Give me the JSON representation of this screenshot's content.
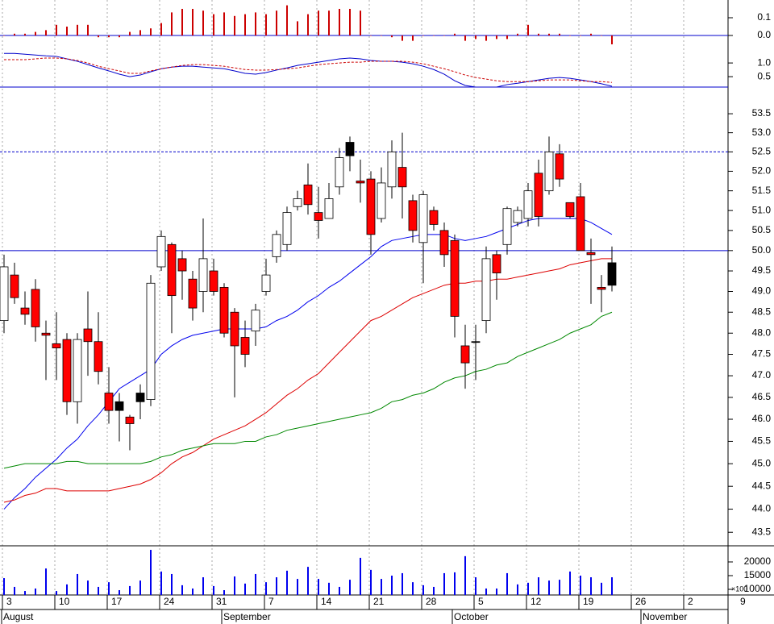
{
  "chart_data": [
    {
      "type": "bar",
      "color": "#cc0000",
      "ylim": [
        -0.05,
        0.2
      ],
      "yticks": [
        0.1,
        {
          "value": 0,
          "label": "0.0"
        }
      ],
      "baseline_color": "#0000cc",
      "values": [
        0.0,
        0.01,
        0.01,
        0.02,
        0.03,
        0.06,
        0.05,
        0.06,
        0.06,
        -0.01,
        -0.01,
        -0.01,
        0.02,
        0.03,
        0.04,
        0.07,
        0.13,
        0.15,
        0.15,
        0.14,
        0.12,
        0.13,
        0.11,
        0.12,
        0.13,
        0.12,
        0.14,
        0.17,
        0.08,
        0.12,
        0.14,
        0.14,
        0.15,
        0.15,
        0.14,
        0.0,
        0.0,
        -0.01,
        -0.03,
        -0.03,
        0.0,
        0.0,
        0.0,
        0.01,
        -0.03,
        -0.02,
        -0.03,
        -0.02,
        -0.02,
        0.01,
        0.06,
        0.01,
        0.01,
        0.01,
        0.0,
        0.0,
        0.01,
        0.0,
        -0.05
      ]
    },
    {
      "type": "line",
      "ylim": [
        0.12,
        1.68
      ],
      "yticks": [
        {
          "value": 1,
          "label": "1.0"
        },
        0.5
      ],
      "series": [
        {
          "color": "#0000cc",
          "dashed": false,
          "values": [
            1.35,
            1.35,
            1.32,
            1.29,
            1.26,
            1.24,
            1.15,
            1.06,
            0.94,
            0.82,
            0.71,
            0.59,
            0.5,
            0.56,
            0.68,
            0.79,
            0.85,
            0.88,
            0.88,
            0.85,
            0.82,
            0.79,
            0.71,
            0.62,
            0.59,
            0.65,
            0.74,
            0.82,
            0.91,
            0.97,
            1.03,
            1.09,
            1.15,
            1.18,
            1.15,
            1.09,
            1.06,
            1.06,
            1.03,
            0.97,
            0.88,
            0.76,
            0.59,
            0.35,
            0.18,
            0.12,
            0.12,
            0.12,
            0.21,
            0.26,
            0.32,
            0.38,
            0.44,
            0.47,
            0.44,
            0.38,
            0.32,
            0.24,
            0.15
          ]
        },
        {
          "color": "#cc0000",
          "dashed": true,
          "values": [
            1.12,
            1.12,
            1.12,
            1.15,
            1.18,
            1.18,
            1.15,
            1.09,
            1.0,
            0.88,
            0.79,
            0.71,
            0.62,
            0.62,
            0.71,
            0.79,
            0.85,
            0.91,
            0.94,
            0.94,
            0.91,
            0.88,
            0.82,
            0.76,
            0.74,
            0.74,
            0.76,
            0.79,
            0.82,
            0.88,
            0.94,
            0.97,
            1.0,
            1.03,
            1.03,
            1.06,
            1.06,
            1.06,
            1.06,
            1.03,
            0.97,
            0.88,
            0.79,
            0.68,
            0.56,
            0.47,
            0.41,
            0.35,
            0.32,
            0.32,
            0.32,
            0.35,
            0.38,
            0.38,
            0.38,
            0.35,
            0.32,
            0.32,
            0.29
          ]
        }
      ]
    },
    {
      "type": "candlestick",
      "log_scale": true,
      "ylim": [
        43.21,
        54.21
      ],
      "yticks": [
        43.5,
        {
          "value": 44,
          "label": "44.0"
        },
        44.5,
        {
          "value": 45,
          "label": "45.0"
        },
        45.5,
        {
          "value": 46,
          "label": "46.0"
        },
        46.5,
        {
          "value": 47,
          "label": "47.0"
        },
        47.5,
        {
          "value": 48,
          "label": "48.0"
        },
        48.5,
        {
          "value": 49,
          "label": "49.0"
        },
        49.5,
        {
          "value": 50,
          "label": "50.0"
        },
        50.5,
        {
          "value": 51,
          "label": "51.0"
        },
        51.5,
        {
          "value": 52,
          "label": "52.0"
        },
        52.5,
        {
          "value": 53,
          "label": "53.0"
        },
        53.5
      ],
      "open": [
        48.3,
        49.4,
        48.6,
        49.05,
        48.0,
        47.75,
        47.85,
        46.4,
        48.1,
        47.8,
        46.6,
        46.4,
        46.05,
        46.6,
        46.45,
        49.6,
        50.15,
        49.8,
        49.3,
        49.0,
        49.5,
        49.1,
        48.5,
        47.9,
        48.05,
        49.0,
        49.85,
        50.15,
        51.1,
        51.65,
        50.95,
        50.8,
        51.6,
        52.4,
        51.75,
        51.8,
        50.8,
        51.6,
        52.1,
        51.25,
        50.2,
        51.0,
        50.5,
        50.25,
        47.7,
        47.8,
        48.3,
        49.9,
        50.15,
        50.7,
        50.8,
        51.95,
        51.5,
        52.45,
        51.2,
        51.35,
        49.95,
        49.1,
        49.7
      ],
      "high": [
        49.9,
        49.7,
        49.0,
        49.3,
        48.3,
        48.5,
        48.0,
        48.0,
        49.0,
        48.5,
        47.2,
        46.6,
        46.1,
        46.8,
        49.4,
        50.5,
        50.2,
        50.0,
        49.5,
        50.8,
        49.8,
        49.2,
        48.6,
        48.3,
        48.7,
        49.8,
        50.5,
        51.1,
        51.5,
        52.2,
        51.6,
        51.7,
        52.6,
        52.9,
        52.3,
        52.0,
        52.1,
        52.8,
        53.0,
        51.4,
        51.5,
        51.1,
        50.7,
        50.4,
        48.2,
        48.2,
        50.1,
        50.0,
        51.1,
        51.1,
        51.7,
        52.3,
        52.9,
        52.7,
        51.2,
        51.7,
        50.3,
        49.4,
        50.1
      ],
      "low": [
        48.0,
        48.7,
        48.2,
        47.8,
        46.9,
        46.9,
        46.1,
        45.9,
        47.0,
        46.8,
        45.9,
        45.5,
        45.3,
        46.0,
        46.3,
        49.5,
        48.0,
        48.8,
        48.3,
        48.5,
        48.9,
        47.9,
        46.5,
        47.2,
        47.7,
        48.9,
        49.7,
        50.0,
        51.0,
        50.9,
        50.3,
        50.8,
        51.4,
        52.0,
        51.2,
        49.9,
        50.7,
        51.3,
        50.8,
        50.2,
        49.2,
        50.5,
        49.6,
        47.9,
        46.7,
        46.9,
        48.0,
        48.8,
        49.9,
        50.6,
        50.6,
        50.6,
        51.4,
        51.6,
        50.8,
        50.0,
        48.7,
        48.5,
        49.0
      ],
      "close": [
        49.6,
        48.85,
        48.45,
        48.15,
        47.95,
        47.65,
        46.4,
        47.85,
        47.8,
        47.1,
        46.2,
        46.2,
        45.9,
        46.4,
        49.2,
        50.35,
        48.9,
        49.5,
        48.6,
        49.8,
        49.0,
        48.0,
        47.7,
        47.5,
        48.55,
        49.4,
        50.4,
        50.95,
        51.3,
        51.15,
        50.75,
        51.3,
        52.35,
        52.75,
        51.7,
        50.4,
        51.7,
        52.5,
        51.6,
        50.5,
        51.4,
        50.65,
        49.9,
        48.4,
        47.3,
        47.8,
        49.8,
        49.45,
        51.05,
        51.0,
        51.5,
        50.85,
        52.5,
        51.8,
        50.85,
        50.0,
        49.9,
        49.05,
        49.15
      ],
      "colors": [
        "#fff",
        "#f00",
        "#f00",
        "#f00",
        "#f00",
        "#f00",
        "#f00",
        "#fff",
        "#f00",
        "#f00",
        "#f00",
        "#000",
        "#f00",
        "#000",
        "#fff",
        "#fff",
        "#f00",
        "#f00",
        "#f00",
        "#fff",
        "#f00",
        "#f00",
        "#f00",
        "#f00",
        "#fff",
        "#fff",
        "#fff",
        "#fff",
        "#fff",
        "#f00",
        "#f00",
        "#fff",
        "#fff",
        "#000",
        "#f00",
        "#f00",
        "#fff",
        "#fff",
        "#f00",
        "#f00",
        "#fff",
        "#f00",
        "#f00",
        "#f00",
        "#f00",
        "#000",
        "#fff",
        "#f00",
        "#fff",
        "#fff",
        "#fff",
        "#f00",
        "#fff",
        "#f00",
        "#f00",
        "#f00",
        "#f00",
        "#f00",
        "#000"
      ],
      "hlines": [
        {
          "value": 50,
          "color": "#0000cc",
          "dashed": false
        },
        {
          "value": 52.5,
          "color": "#0000cc",
          "dashed": true
        }
      ],
      "series": [
        {
          "color": "#0000ee",
          "values": [
            44.0,
            44.25,
            44.45,
            44.7,
            44.9,
            45.1,
            45.35,
            45.55,
            45.85,
            46.1,
            46.4,
            46.7,
            46.85,
            47.0,
            47.15,
            47.5,
            47.7,
            47.85,
            47.95,
            48.0,
            48.05,
            48.1,
            48.1,
            48.1,
            48.1,
            48.15,
            48.3,
            48.4,
            48.55,
            48.75,
            48.9,
            49.1,
            49.25,
            49.45,
            49.65,
            49.85,
            50.1,
            50.25,
            50.3,
            50.35,
            50.4,
            50.4,
            50.4,
            50.3,
            50.25,
            50.3,
            50.35,
            50.45,
            50.55,
            50.65,
            50.75,
            50.8,
            50.8,
            50.8,
            50.8,
            50.8,
            50.7,
            50.55,
            50.4
          ]
        },
        {
          "color": "#dd0000",
          "values": [
            44.15,
            44.2,
            44.3,
            44.35,
            44.45,
            44.45,
            44.4,
            44.4,
            44.4,
            44.4,
            44.4,
            44.45,
            44.5,
            44.55,
            44.65,
            44.8,
            45.0,
            45.15,
            45.25,
            45.4,
            45.55,
            45.65,
            45.75,
            45.85,
            46.0,
            46.15,
            46.35,
            46.55,
            46.7,
            46.9,
            47.05,
            47.3,
            47.55,
            47.8,
            48.05,
            48.3,
            48.4,
            48.55,
            48.7,
            48.85,
            48.95,
            49.05,
            49.15,
            49.2,
            49.2,
            49.25,
            49.25,
            49.3,
            49.3,
            49.35,
            49.4,
            49.45,
            49.5,
            49.55,
            49.65,
            49.7,
            49.75,
            49.8,
            49.8
          ]
        },
        {
          "color": "#008800",
          "values": [
            44.9,
            44.95,
            45.0,
            45.0,
            45.0,
            45.0,
            45.05,
            45.05,
            45.0,
            45.0,
            45.0,
            45.0,
            45.0,
            45.0,
            45.05,
            45.15,
            45.2,
            45.3,
            45.35,
            45.4,
            45.45,
            45.45,
            45.45,
            45.5,
            45.5,
            45.6,
            45.65,
            45.75,
            45.8,
            45.85,
            45.9,
            45.95,
            46.0,
            46.05,
            46.1,
            46.15,
            46.25,
            46.4,
            46.45,
            46.55,
            46.6,
            46.7,
            46.85,
            46.95,
            47.0,
            47.1,
            47.15,
            47.25,
            47.3,
            47.45,
            47.55,
            47.65,
            47.75,
            47.85,
            48.0,
            48.1,
            48.2,
            48.4,
            48.5
          ]
        }
      ]
    },
    {
      "type": "bar",
      "color": "#0000ee",
      "ylim": [
        7941,
        25882
      ],
      "yticks": [
        20000,
        15000,
        10000
      ],
      "unit": "×100",
      "categories": [
        "3",
        null,
        null,
        null,
        null,
        "10",
        null,
        null,
        null,
        null,
        "17",
        null,
        null,
        null,
        null,
        "24",
        null,
        null,
        null,
        null,
        "31",
        null,
        null,
        null,
        null,
        "7",
        null,
        null,
        null,
        null,
        "14",
        null,
        null,
        null,
        null,
        "21",
        null,
        null,
        null,
        null,
        "28",
        null,
        null,
        null,
        null,
        "5",
        null,
        null,
        null,
        null,
        "12",
        null,
        null,
        null,
        null,
        "19",
        null,
        null,
        null,
        null,
        "26",
        null,
        null,
        null,
        null,
        "2",
        null,
        null,
        null,
        null,
        "9"
      ],
      "months": [
        "August",
        null,
        null,
        null,
        null,
        null,
        null,
        null,
        null,
        null,
        null,
        null,
        null,
        null,
        null,
        null,
        null,
        null,
        null,
        null,
        null,
        "September",
        null,
        null,
        null,
        null,
        null,
        null,
        null,
        null,
        null,
        null,
        null,
        null,
        null,
        null,
        null,
        null,
        null,
        null,
        null,
        null,
        null,
        "October",
        null,
        null,
        null,
        null,
        null,
        null,
        null,
        null,
        null,
        null,
        null,
        null,
        null,
        null,
        null,
        null,
        null,
        "November",
        null,
        null,
        null,
        null,
        null,
        null,
        null
      ],
      "values": [
        14100,
        10900,
        9400,
        10300,
        17600,
        9400,
        11800,
        15600,
        13200,
        10900,
        12600,
        9700,
        11200,
        13200,
        24400,
        16500,
        15600,
        11500,
        10300,
        14400,
        11200,
        9700,
        14700,
        12100,
        15600,
        12600,
        14400,
        16800,
        13800,
        18200,
        13800,
        12400,
        10900,
        13500,
        21500,
        17100,
        13800,
        15000,
        15900,
        12600,
        11500,
        10900,
        15900,
        16200,
        22100,
        14400,
        10300,
        10300,
        15900,
        11800,
        12400,
        14400,
        13200,
        13500,
        16500,
        15000,
        14400,
        12400,
        14400,
        null,
        null,
        null,
        null,
        null,
        null,
        null,
        null,
        null,
        null,
        null,
        null
      ]
    }
  ]
}
